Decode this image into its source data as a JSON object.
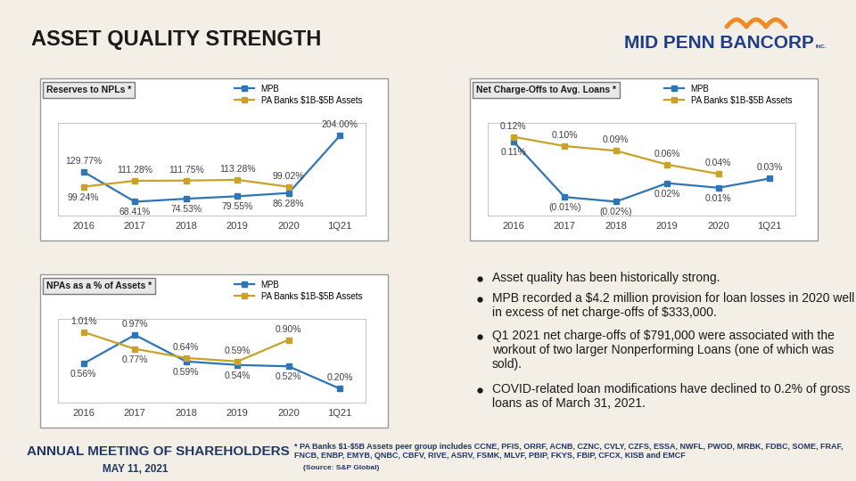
{
  "title": "ASSET QUALITY STRENGTH",
  "logo": {
    "name": "MID PENN BANCORP",
    "suffix": "INC."
  },
  "chart_data": [
    {
      "type": "line",
      "title": "Reserves to NPLs *",
      "categories": [
        "2016",
        "2017",
        "2018",
        "2019",
        "2020",
        "1Q21"
      ],
      "series": [
        {
          "name": "MPB",
          "color": "#2e75b6",
          "marker": "square",
          "line_style": "solid",
          "values": [
            129.77,
            68.41,
            74.53,
            79.55,
            86.28,
            204.0
          ],
          "value_labels": [
            "129.77%",
            "68.41%",
            "74.53%",
            "79.55%",
            "86.28%",
            "204.00%"
          ]
        },
        {
          "name": "PA Banks $1B-$5B Assets",
          "color": "#c9a227",
          "marker": "square",
          "line_style": "solid",
          "values": [
            99.24,
            111.28,
            111.75,
            113.28,
            99.02,
            null
          ],
          "value_labels": [
            "99.24%",
            "111.28%",
            "111.75%",
            "113.28%",
            "99.02%",
            null
          ]
        }
      ],
      "ylim": [
        40,
        230
      ],
      "tick_labels": "x",
      "data_labels": true,
      "legend": "upper right"
    },
    {
      "type": "line",
      "title": "Net Charge-Offs to Avg. Loans *",
      "categories": [
        "2016",
        "2017",
        "2018",
        "2019",
        "2020",
        "1Q21"
      ],
      "series": [
        {
          "name": "MPB",
          "color": "#2e75b6",
          "marker": "square",
          "line_style": "solid",
          "values": [
            0.11,
            -0.01,
            -0.02,
            0.02,
            0.01,
            0.03
          ],
          "value_labels": [
            "0.11%",
            "(0.01%)",
            "(0.02%)",
            "0.02%",
            "0.01%",
            "0.03%"
          ]
        },
        {
          "name": "PA Banks $1B-$5B Assets",
          "color": "#c9a227",
          "marker": "square",
          "line_style": "solid",
          "values": [
            0.12,
            0.1,
            0.09,
            0.06,
            0.04,
            null
          ],
          "value_labels": [
            "0.12%",
            "0.10%",
            "0.09%",
            "0.06%",
            "0.04%",
            null
          ]
        }
      ],
      "ylim": [
        -0.05,
        0.15
      ],
      "tick_labels": "x",
      "data_labels": true,
      "legend": "upper right"
    },
    {
      "type": "line",
      "title": "NPAs as a % of Assets *",
      "categories": [
        "2016",
        "2017",
        "2018",
        "2019",
        "2020",
        "1Q21"
      ],
      "series": [
        {
          "name": "MPB",
          "color": "#2e75b6",
          "marker": "square",
          "line_style": "solid",
          "values": [
            0.56,
            0.97,
            0.59,
            0.54,
            0.52,
            0.2
          ],
          "value_labels": [
            "0.56%",
            "0.97%",
            "0.59%",
            "0.54%",
            "0.52%",
            "0.20%"
          ]
        },
        {
          "name": "PA Banks $1B-$5B Assets",
          "color": "#c9a227",
          "marker": "square",
          "line_style": "solid",
          "values": [
            1.01,
            0.77,
            0.64,
            0.59,
            0.9,
            null
          ],
          "value_labels": [
            "1.01%",
            "0.77%",
            "0.64%",
            "0.59%",
            "0.90%",
            null
          ]
        }
      ],
      "ylim": [
        0,
        1.2
      ],
      "tick_labels": "x",
      "data_labels": true,
      "legend": "upper right"
    }
  ],
  "bullets": [
    "Asset quality has been historically strong.",
    "MPB recorded a $4.2 million provision for loan losses in 2020 well in excess of net charge-offs of $333,000.",
    "Q1 2021 net charge-offs of $791,000 were associated with the workout of two larger Nonperforming Loans (one of which was sold).",
    "COVID-related loan modifications have declined to 0.2% of gross loans as of March 31, 2021."
  ],
  "footnote": "* PA Banks $1-$5B Assets peer group includes CCNE, PFIS, ORRF, ACNB, CZNC, CVLY, CZFS, ESSA, NWFL, PWOD, MRBK, FDBC, SOME, FRAF, FNCB, ENBP, EMYB, QNBC, CBFV, RIVE, ASRV, FSMK, MLVF, PBIP, FKYS, FBIP, CFCX, KISB and EMCF",
  "source": "(Source: S&P Global)",
  "footer": {
    "event": "ANNUAL MEETING OF SHAREHOLDERS",
    "date": "MAY 11, 2021"
  }
}
